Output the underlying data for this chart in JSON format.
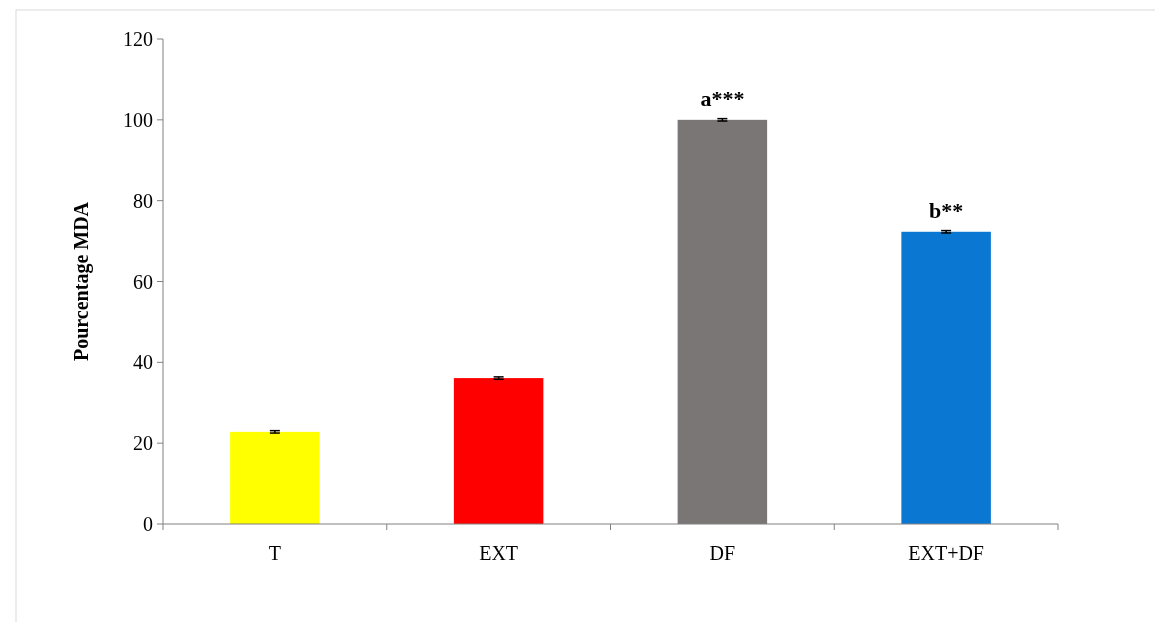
{
  "chart_data": {
    "type": "bar",
    "ylabel": "Pourcentage MDA",
    "categories": [
      "T",
      "EXT",
      "DF",
      "EXT+DF"
    ],
    "values": [
      22.8,
      36.1,
      100,
      72.3
    ],
    "colors": [
      "#ffff00",
      "#ff0000",
      "#7a7676",
      "#0a78d2"
    ],
    "errors": [
      0.3,
      0.3,
      0.3,
      0.3
    ],
    "ylim": [
      0,
      120
    ],
    "yticks": [
      0,
      20,
      40,
      60,
      80,
      100,
      120
    ],
    "grid": false,
    "annotations": [
      {
        "text": "a***",
        "x": "DF",
        "y": 100
      },
      {
        "text": "b**",
        "x": "EXT+DF",
        "y": 72.3
      }
    ]
  }
}
